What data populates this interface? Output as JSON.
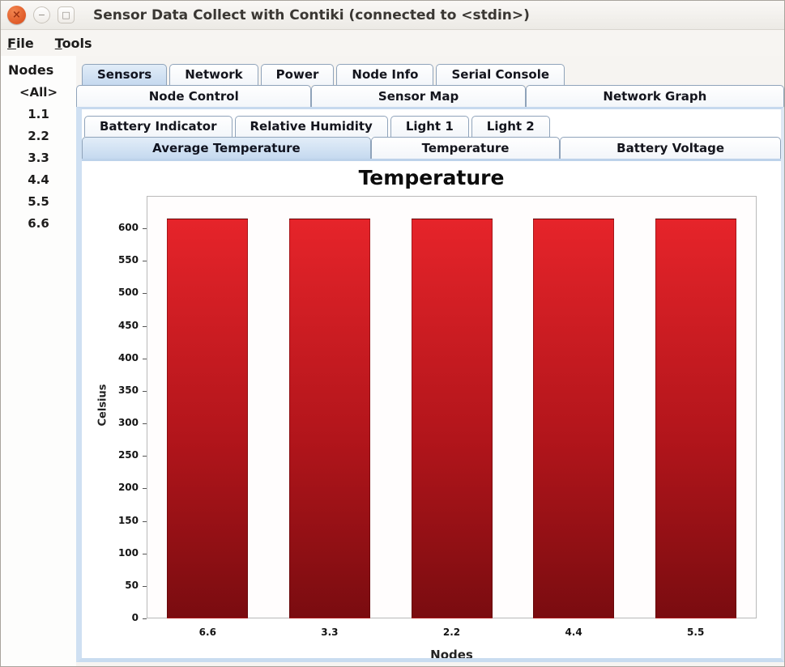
{
  "window": {
    "title": "Sensor Data Collect with Contiki (connected to <stdin>)",
    "buttons": {
      "close": "×",
      "minimize": "−",
      "maximize": "□"
    }
  },
  "menubar": {
    "items": [
      {
        "label": "File"
      },
      {
        "label": "Tools"
      }
    ]
  },
  "sidebar": {
    "header": "Nodes",
    "items": [
      "<All>",
      "1.1",
      "2.2",
      "3.3",
      "4.4",
      "5.5",
      "6.6"
    ]
  },
  "tabs": {
    "outer_row1": [
      {
        "label": "Sensors",
        "selected": true
      },
      {
        "label": "Network",
        "selected": false
      },
      {
        "label": "Power",
        "selected": false
      },
      {
        "label": "Node Info",
        "selected": false
      },
      {
        "label": "Serial Console",
        "selected": false
      }
    ],
    "outer_row2": [
      {
        "label": "Node Control",
        "selected": false
      },
      {
        "label": "Sensor Map",
        "selected": false
      },
      {
        "label": "Network Graph",
        "selected": false
      }
    ],
    "inner_row1": [
      {
        "label": "Battery Indicator",
        "selected": false
      },
      {
        "label": "Relative Humidity",
        "selected": false
      },
      {
        "label": "Light 1",
        "selected": false
      },
      {
        "label": "Light 2",
        "selected": false
      }
    ],
    "inner_row2": [
      {
        "label": "Average Temperature",
        "selected": true
      },
      {
        "label": "Temperature",
        "selected": false
      },
      {
        "label": "Battery Voltage",
        "selected": false
      }
    ]
  },
  "chart_data": {
    "type": "bar",
    "title": "Temperature",
    "xlabel": "Nodes",
    "ylabel": "Celsius",
    "categories": [
      "6.6",
      "3.3",
      "2.2",
      "4.4",
      "5.5"
    ],
    "values": [
      615,
      615,
      615,
      615,
      615
    ],
    "ylim": [
      0,
      650
    ],
    "ytick_step": 50,
    "ytick_max": 600,
    "grid": false,
    "legend": "none",
    "bar_color_top": "#e6242a",
    "bar_color_bottom": "#7a0c10"
  },
  "colors": {
    "selected_tab": "#c5d9ef",
    "tab_border": "#8fa3ba",
    "content_border": "#cfe0f2",
    "close_button": "#e05b28",
    "titlebar_bg": "#f3f1ed"
  }
}
